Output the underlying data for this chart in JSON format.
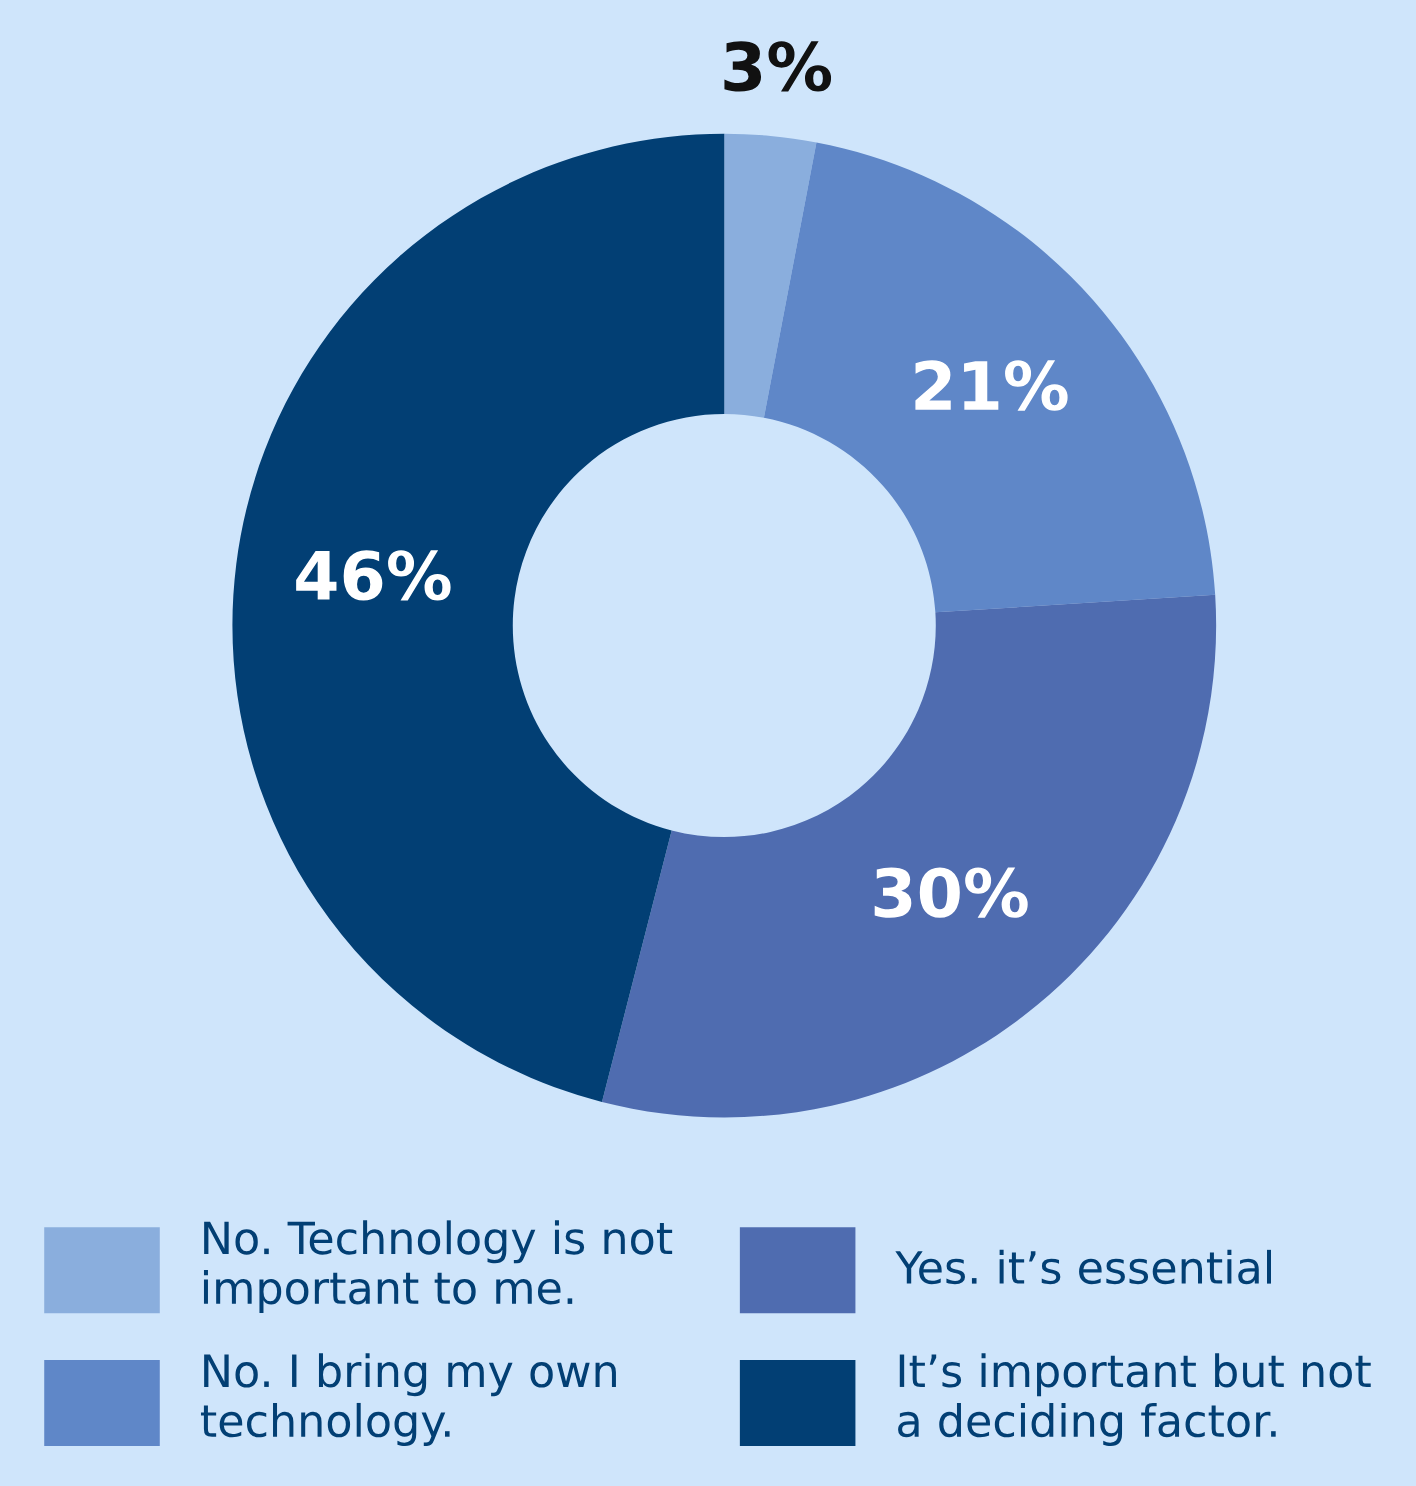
{
  "chart_data": {
    "type": "donut",
    "categories": [
      "No. Technology is not\nimportant to me.",
      "No. I bring my own\ntechnology.",
      "Yes. it’s essential",
      "It’s important but not\na deciding factor."
    ],
    "values": [
      3,
      21,
      30,
      46
    ],
    "colors": [
      "#8aaedd",
      "#5f87c8",
      "#4f6cb0",
      "#023f74"
    ],
    "value_labels": [
      "3%",
      "21%",
      "30%",
      "46%"
    ],
    "legend": "bottom"
  }
}
